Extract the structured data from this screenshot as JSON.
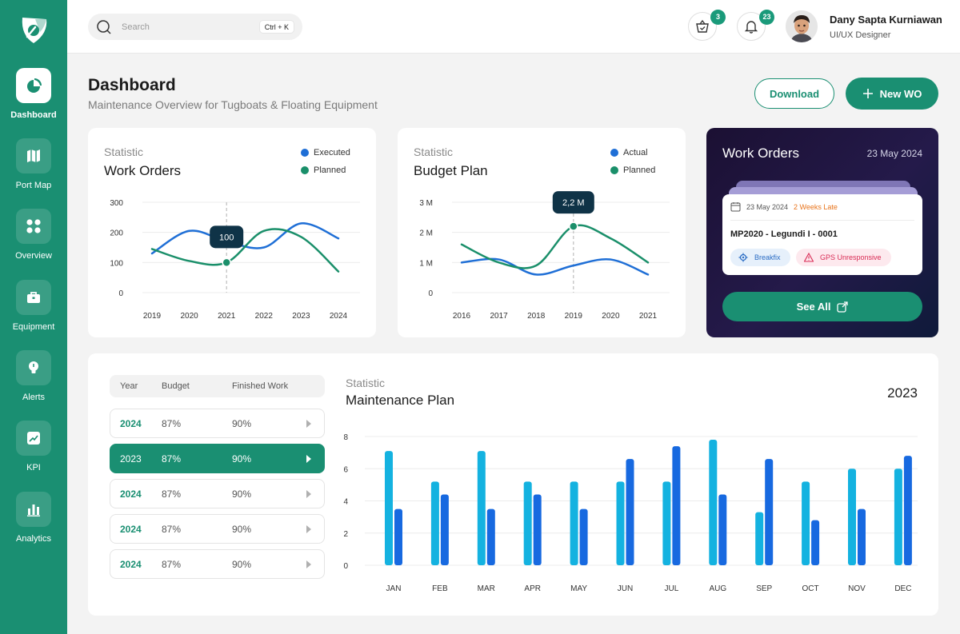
{
  "sidebar": {
    "items": [
      {
        "label": "Dashboard",
        "icon": "pie-chart-icon",
        "active": true
      },
      {
        "label": "Port Map",
        "icon": "map-icon"
      },
      {
        "label": "Overview",
        "icon": "grid-icon"
      },
      {
        "label": "Equipment",
        "icon": "briefcase-icon"
      },
      {
        "label": "Alerts",
        "icon": "bulb-icon"
      },
      {
        "label": "KPI",
        "icon": "kpi-chart-icon"
      },
      {
        "label": "Analytics",
        "icon": "bar-chart-icon"
      }
    ]
  },
  "header": {
    "search_placeholder": "Search",
    "shortcut": "Ctrl + K",
    "cart_count": "3",
    "notification_count": "23",
    "user_name": "Dany Sapta Kurniawan",
    "user_role": "UI/UX Designer"
  },
  "page": {
    "title": "Dashboard",
    "subtitle": "Maintenance Overview for Tugboats & Floating Equipment",
    "download_label": "Download",
    "new_wo_label": "New WO"
  },
  "work_orders_chart": {
    "kicker": "Statistic",
    "title": "Work Orders",
    "tooltip": "100"
  },
  "budget_chart": {
    "kicker": "Statistic",
    "title": "Budget Plan",
    "tooltip": "2,2 M"
  },
  "wo_panel": {
    "title": "Work Orders",
    "date": "23 May 2024",
    "item": {
      "date": "23 May 2024",
      "late": "2 Weeks Late",
      "code": "MP2020 - Legundi I - 0001",
      "tag1": "Breakfix",
      "tag2": "GPS Unresponsive"
    },
    "see_all": "See All"
  },
  "maintenance_table": {
    "headers": {
      "year": "Year",
      "budget": "Budget",
      "finished": "Finished Work"
    },
    "rows": [
      {
        "year": "2024",
        "budget": "87%",
        "finished": "90%"
      },
      {
        "year": "2023",
        "budget": "87%",
        "finished": "90%",
        "selected": true
      },
      {
        "year": "2024",
        "budget": "87%",
        "finished": "90%"
      },
      {
        "year": "2024",
        "budget": "87%",
        "finished": "90%"
      },
      {
        "year": "2024",
        "budget": "87%",
        "finished": "90%"
      }
    ]
  },
  "maintenance_plan": {
    "kicker": "Statistic",
    "title": "Maintenance Plan",
    "year": "2023"
  },
  "colors": {
    "brand": "#1a8f72",
    "blue": "#1f6fd6",
    "green": "#1a8f6a",
    "bar_light": "#14b2e0",
    "bar_dark": "#1769e0"
  },
  "chart_data": [
    {
      "type": "line",
      "categories": [
        "2019",
        "2020",
        "2021",
        "2022",
        "2023",
        "2024"
      ],
      "series": [
        {
          "name": "Executed",
          "values": [
            130,
            205,
            170,
            150,
            230,
            180
          ]
        },
        {
          "name": "Planned",
          "values": [
            145,
            105,
            100,
            205,
            185,
            70
          ]
        }
      ],
      "ylim": [
        0,
        300
      ],
      "yticks": [
        "0",
        "100",
        "200",
        "300"
      ],
      "legend": "top-right",
      "grid": true
    },
    {
      "type": "line",
      "categories": [
        "2016",
        "2017",
        "2018",
        "2019",
        "2020",
        "2021"
      ],
      "series": [
        {
          "name": "Actual",
          "values": [
            1.0,
            1.1,
            0.6,
            0.9,
            1.1,
            0.6
          ]
        },
        {
          "name": "Planned",
          "values": [
            1.6,
            1.0,
            0.9,
            2.2,
            1.8,
            1.0
          ]
        }
      ],
      "ylim": [
        0,
        3
      ],
      "yticks": [
        "0",
        "1 M",
        "2 M",
        "3 M"
      ],
      "legend": "top-right",
      "grid": true
    },
    {
      "type": "bar",
      "categories": [
        "JAN",
        "FEB",
        "MAR",
        "APR",
        "MAY",
        "JUN",
        "JUL",
        "AUG",
        "SEP",
        "OCT",
        "NOV",
        "DEC"
      ],
      "series": [
        {
          "values": [
            7.1,
            5.2,
            7.1,
            5.2,
            5.2,
            5.2,
            5.2,
            7.8,
            3.3,
            5.2,
            6.0,
            6.0
          ]
        },
        {
          "values": [
            3.5,
            4.4,
            3.5,
            4.4,
            3.5,
            6.6,
            7.4,
            4.4,
            6.6,
            2.8,
            3.5,
            6.8
          ]
        }
      ],
      "ylim": [
        0,
        8
      ],
      "yticks": [
        "0",
        "2",
        "4",
        "6",
        "8"
      ],
      "grid": true
    }
  ]
}
